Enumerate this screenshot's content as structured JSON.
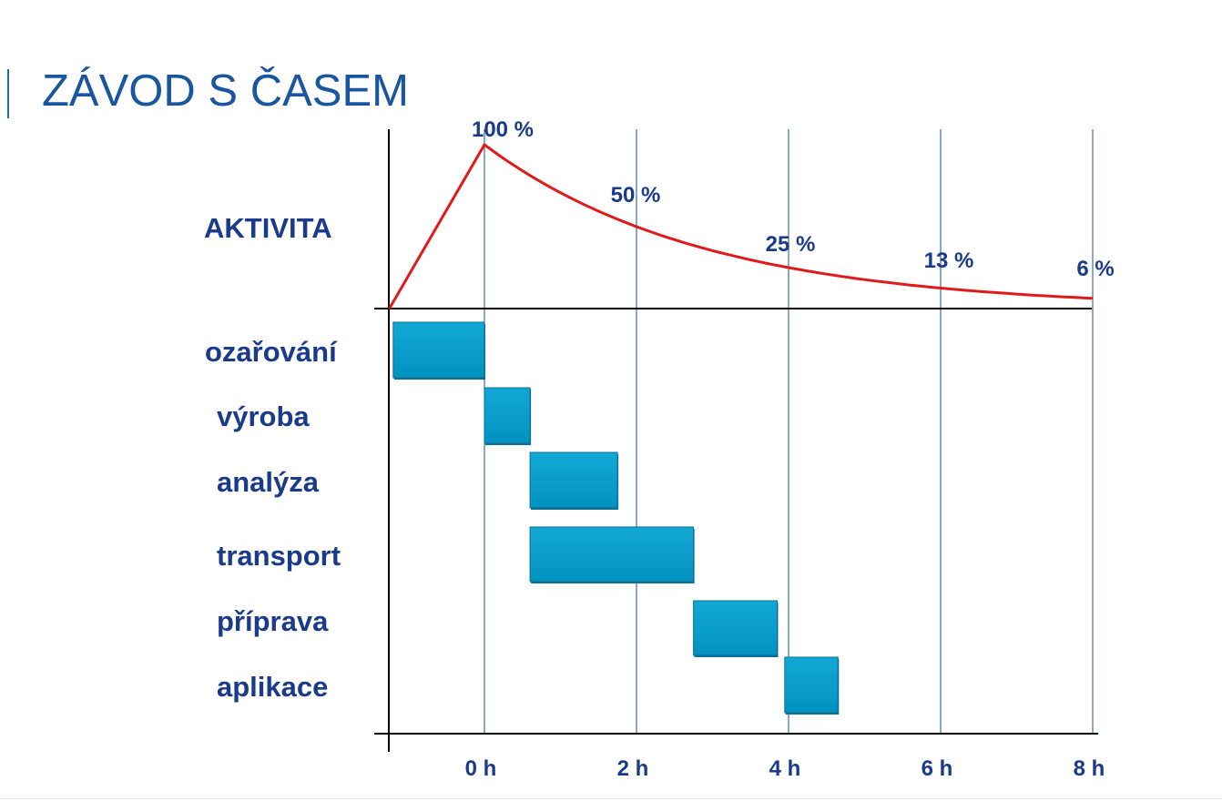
{
  "slide": {
    "title": "ZÁVOD S ČASEM"
  },
  "colors": {
    "title": "#1a56a0",
    "label": "#1a3a8c",
    "curve": "#e01a1a",
    "bar": "#0399c8",
    "bar_dark": "#0b6f93",
    "axis": "#000000",
    "grid": "#1a4d8f"
  },
  "chart_data": {
    "type": "gantt_with_decay_line",
    "activity_label": "AKTIVITA",
    "x_unit": "h",
    "x_ticks": [
      {
        "value": 0,
        "label": "0 h"
      },
      {
        "value": 2,
        "label": "2 h"
      },
      {
        "value": 4,
        "label": "4 h"
      },
      {
        "value": 6,
        "label": "6 h"
      },
      {
        "value": 8,
        "label": "8 h"
      }
    ],
    "x_range": [
      -1.25,
      8.1
    ],
    "activity_curve": {
      "start": -1.25,
      "peak_time": 0,
      "peak_percent": 100,
      "half_life_h": 2,
      "labels": [
        {
          "x": 0,
          "text": "100 %"
        },
        {
          "x": 2,
          "text": "50 %"
        },
        {
          "x": 4,
          "text": "25 %"
        },
        {
          "x": 6,
          "text": "13 %"
        },
        {
          "x": 8,
          "text": "6 %"
        }
      ]
    },
    "tasks": [
      {
        "name": "ozařování",
        "start": -1.2,
        "end": 0
      },
      {
        "name": "výroba",
        "start": 0,
        "end": 0.6
      },
      {
        "name": "analýza",
        "start": 0.6,
        "end": 1.75
      },
      {
        "name": "transport",
        "start": 0.6,
        "end": 2.75
      },
      {
        "name": "příprava",
        "start": 2.75,
        "end": 3.85
      },
      {
        "name": "aplikace",
        "start": 3.95,
        "end": 4.65
      }
    ]
  }
}
